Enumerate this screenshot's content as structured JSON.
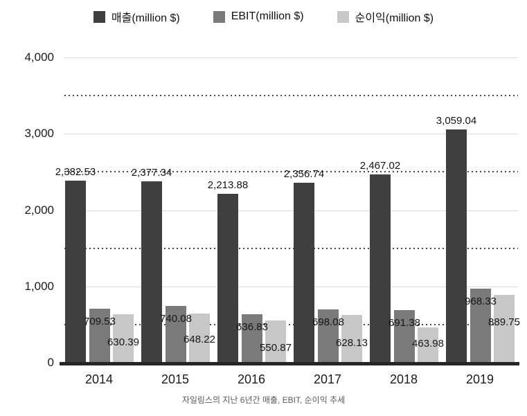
{
  "chart_data": {
    "type": "bar",
    "title": "",
    "caption": "자일링스의 지난 6년간 매출, EBIT, 순이익 추세",
    "categories": [
      "2014",
      "2015",
      "2016",
      "2017",
      "2018",
      "2019"
    ],
    "series": [
      {
        "key": "revenue",
        "name": "매출(million $)",
        "color": "#3f3f3f",
        "values": [
          2382.53,
          2377.34,
          2213.88,
          2356.74,
          2467.02,
          3059.04
        ],
        "value_labels": [
          "2,382.53",
          "2,377.34",
          "2,213.88",
          "2,356.74",
          "2,467.02",
          "3,059.04"
        ]
      },
      {
        "key": "ebit",
        "name": "EBIT(million $)",
        "color": "#7a7a7a",
        "values": [
          709.53,
          740.08,
          636.83,
          698.08,
          691.38,
          968.33
        ],
        "value_labels": [
          "709.53",
          "740.08",
          "636.83",
          "698.08",
          "691.38",
          "968.33"
        ]
      },
      {
        "key": "net-income",
        "name": "순이익(million $)",
        "color": "#c7c7c7",
        "values": [
          630.39,
          648.22,
          550.87,
          628.13,
          463.98,
          889.75
        ],
        "value_labels": [
          "630.39",
          "648.22",
          "550.87",
          "628.13",
          "463.98",
          "889.75"
        ]
      }
    ],
    "xlabel": "",
    "ylabel": "",
    "ylim": [
      0,
      4000
    ],
    "yticks": [
      0,
      1000,
      2000,
      3000,
      4000
    ],
    "ytick_labels": [
      "0",
      "1,000",
      "2,000",
      "3,000",
      "4,000"
    ],
    "minor_gridlines": [
      500,
      1500,
      2500,
      3500
    ],
    "grid": "major solid, minor dotted, horizontal only",
    "legend_position": "top-center",
    "value_labels_shown": true
  },
  "colors": {
    "grid_major": "#d9d9d9",
    "grid_minor_dots": "#474747",
    "axis_line": "#262626",
    "tick_text": "#1a1a1a",
    "value_text": "#141414",
    "caption_text": "#595959",
    "background": "#ffffff"
  }
}
